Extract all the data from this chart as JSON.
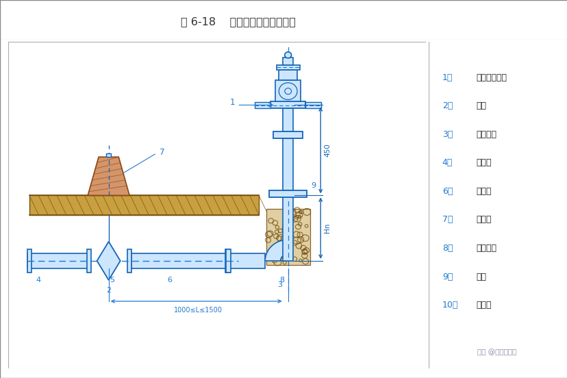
{
  "title": "图 6-18    室外消火栓安装示意图",
  "title_bg": "#c8f0c0",
  "main_bg": "#ddeeff",
  "right_panel_bg": "#f5f9ff",
  "blue": "#1464b4",
  "dblue": "#1e78d0",
  "brown": "#8B4513",
  "legend_items": [
    "1、地上式消火栓",
    "2、阀门",
    "3、弯管底座",
    "4、短管甲",
    "6、短管乙",
    "7、铸铁管",
    "8、阀门套筒",
    "9、支墩",
    "10、排水口"
  ],
  "dim_450": "450",
  "dim_Hn": "Hn",
  "dim_range": "1000≤L≤1500",
  "watermark": "头条 @建筑界一哥"
}
